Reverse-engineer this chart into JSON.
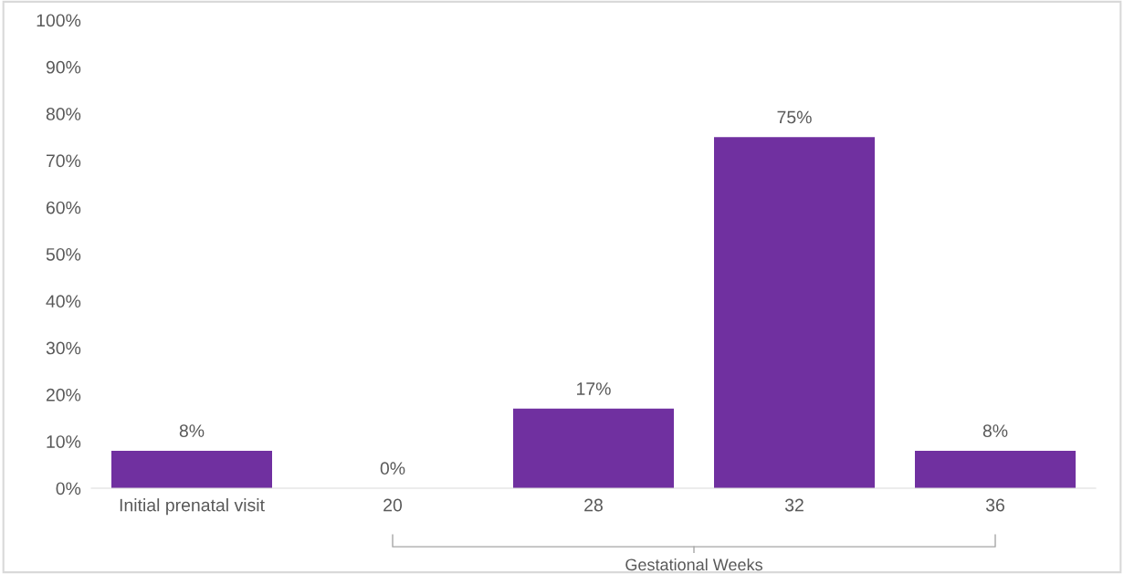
{
  "chart_data": {
    "type": "bar",
    "categories": [
      "Initial prenatal visit",
      "20",
      "28",
      "32",
      "36"
    ],
    "values": [
      8,
      0,
      17,
      75,
      8
    ],
    "value_labels": [
      "8%",
      "0%",
      "17%",
      "75%",
      "8%"
    ],
    "color": "#7030a0",
    "xlabel": "Gestational Weeks",
    "ylim": [
      0,
      100
    ],
    "yticks": [
      {
        "value": 0,
        "label": "0%"
      },
      {
        "value": 10,
        "label": "10%"
      },
      {
        "value": 20,
        "label": "20%"
      },
      {
        "value": 30,
        "label": "30%"
      },
      {
        "value": 40,
        "label": "40%"
      },
      {
        "value": 50,
        "label": "50%"
      },
      {
        "value": 60,
        "label": "60%"
      },
      {
        "value": 70,
        "label": "70%"
      },
      {
        "value": 80,
        "label": "80%"
      },
      {
        "value": 90,
        "label": "90%"
      },
      {
        "value": 100,
        "label": "100%"
      }
    ],
    "grid": false
  }
}
